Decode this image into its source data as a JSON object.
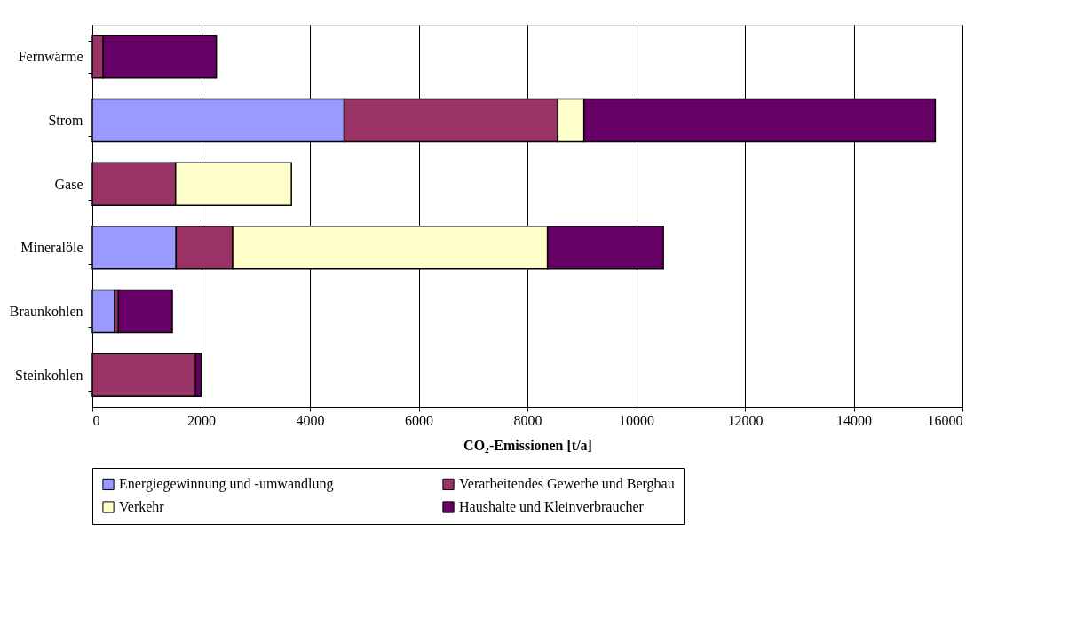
{
  "chart_data": {
    "type": "bar",
    "orientation": "horizontal",
    "stacked": true,
    "categories": [
      "Fernwärme",
      "Strom",
      "Gase",
      "Mineralöle",
      "Braunkohlen",
      "Steinkohlen"
    ],
    "series": [
      {
        "name": "Energiegewinnung und -umwandlung",
        "color": "#9999ff",
        "values": [
          null,
          4630,
          null,
          1540,
          410,
          null
        ]
      },
      {
        "name": "Verarbeitendes Gewerbe und Bergbau",
        "color": "#993366",
        "values": [
          200,
          3930,
          1530,
          1040,
          70,
          1900
        ]
      },
      {
        "name": "Verkehr",
        "color": "#ffffcc",
        "values": [
          null,
          480,
          2130,
          5790,
          null,
          null
        ]
      },
      {
        "name": "Haushalte und Kleinverbraucher",
        "color": "#660066",
        "values": [
          2080,
          6460,
          null,
          2130,
          990,
          100
        ]
      }
    ],
    "xlabel": "CO₂-Emissionen [t/a]",
    "xlim": [
      0,
      16000
    ],
    "xticks": [
      0,
      2000,
      4000,
      6000,
      8000,
      10000,
      12000,
      14000,
      16000
    ],
    "grid": "x",
    "legend": "bottom"
  }
}
